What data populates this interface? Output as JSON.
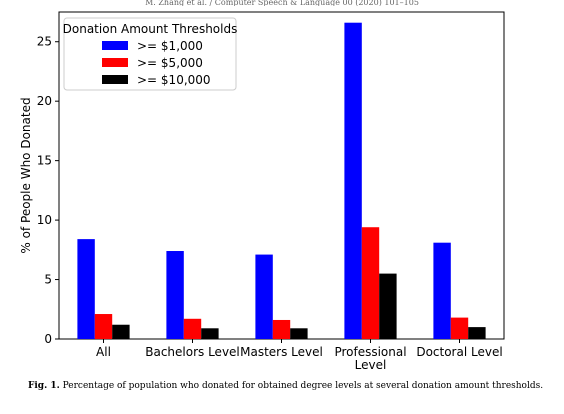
{
  "header_text": "M. Zhang et al. / Computer Speech & Language 00 (2020) 101–105",
  "caption": {
    "label": "Fig. 1.",
    "text": "Percentage of population who donated for obtained degree levels at several donation amount thresholds."
  },
  "chart_data": {
    "type": "bar",
    "title": "",
    "xlabel": "",
    "ylabel": "% of People Who Donated",
    "ylim": [
      0,
      27.5
    ],
    "yticks": [
      0,
      5,
      10,
      15,
      20,
      25
    ],
    "grid": false,
    "legend": {
      "title": "Donation Amount Thresholds",
      "placement": "top-left"
    },
    "categories": [
      [
        "All"
      ],
      [
        "Bachelors Level"
      ],
      [
        "Masters Level"
      ],
      [
        "Professional",
        "Level"
      ],
      [
        "Doctoral Level"
      ]
    ],
    "series": [
      {
        "name": ">= $1,000",
        "color": "#0000ff",
        "values": [
          8.4,
          7.4,
          7.1,
          26.6,
          8.1
        ]
      },
      {
        "name": ">= $5,000",
        "color": "#ff0000",
        "values": [
          2.1,
          1.7,
          1.6,
          9.4,
          1.8
        ]
      },
      {
        "name": ">= $10,000",
        "color": "#000000",
        "values": [
          1.2,
          0.9,
          0.9,
          5.5,
          1.0
        ]
      }
    ]
  }
}
